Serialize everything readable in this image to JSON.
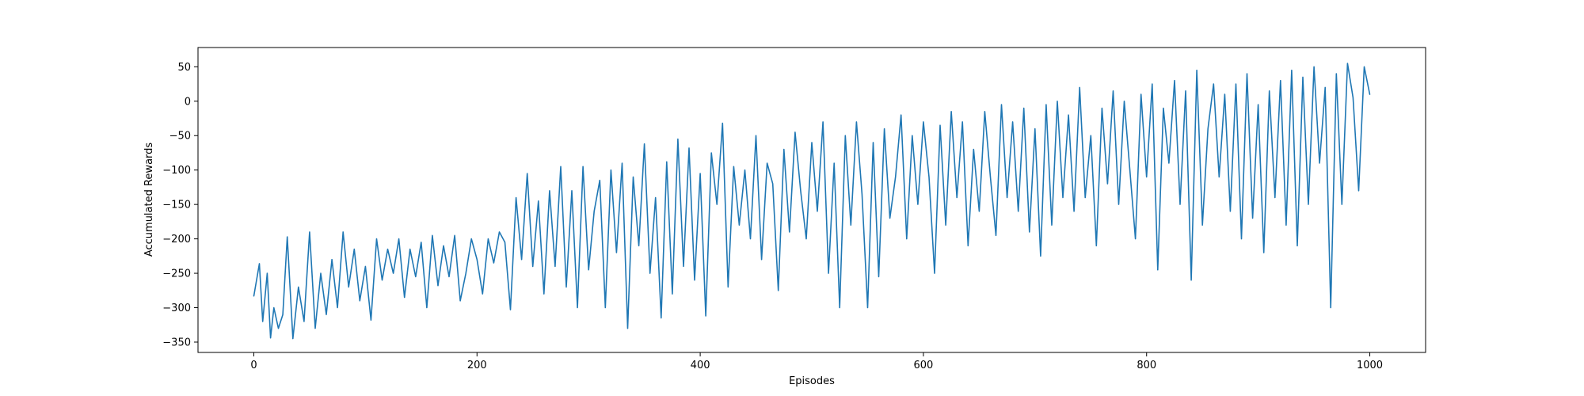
{
  "chart_data": {
    "type": "line",
    "title": "",
    "xlabel": "Episodes",
    "ylabel": "Accumulated Rewards",
    "xlim": [
      -50,
      1050
    ],
    "ylim": [
      -365,
      78
    ],
    "x_ticks": [
      0,
      200,
      400,
      600,
      800,
      1000
    ],
    "x_tick_labels": [
      "0",
      "200",
      "400",
      "600",
      "800",
      "1000"
    ],
    "y_ticks": [
      50,
      0,
      -50,
      -100,
      -150,
      -200,
      -250,
      -300,
      -350
    ],
    "y_tick_labels": [
      "50",
      "0",
      "−50",
      "−100",
      "−150",
      "−200",
      "−250",
      "−300",
      "−350"
    ],
    "grid": false,
    "legend": "none",
    "line_color": "#1f77b4",
    "series": [
      {
        "x": [
          0,
          5,
          8,
          12,
          15,
          18,
          22,
          26,
          30,
          35,
          40,
          45,
          50,
          55,
          60,
          65,
          70,
          75,
          80,
          85,
          90,
          95,
          100,
          105,
          110,
          115,
          120,
          125,
          130,
          135,
          140,
          145,
          150,
          155,
          160,
          165,
          170,
          175,
          180,
          185,
          190,
          195,
          200,
          205,
          210,
          215,
          220,
          225,
          230,
          235,
          240,
          245,
          250,
          255,
          260,
          265,
          270,
          275,
          280,
          285,
          290,
          295,
          300,
          305,
          310,
          315,
          320,
          325,
          330,
          335,
          340,
          345,
          350,
          355,
          360,
          365,
          370,
          375,
          380,
          385,
          390,
          395,
          400,
          405,
          410,
          415,
          420,
          425,
          430,
          435,
          440,
          445,
          450,
          455,
          460,
          465,
          470,
          475,
          480,
          485,
          490,
          495,
          500,
          505,
          510,
          515,
          520,
          525,
          530,
          535,
          540,
          545,
          550,
          555,
          560,
          565,
          570,
          575,
          580,
          585,
          590,
          595,
          600,
          605,
          610,
          615,
          620,
          625,
          630,
          635,
          640,
          645,
          650,
          655,
          660,
          665,
          670,
          675,
          680,
          685,
          690,
          695,
          700,
          705,
          710,
          715,
          720,
          725,
          730,
          735,
          740,
          745,
          750,
          755,
          760,
          765,
          770,
          775,
          780,
          785,
          790,
          795,
          800,
          805,
          810,
          815,
          820,
          825,
          830,
          835,
          840,
          845,
          850,
          855,
          860,
          865,
          870,
          875,
          880,
          885,
          890,
          895,
          900,
          905,
          910,
          915,
          920,
          925,
          930,
          935,
          940,
          945,
          950,
          955,
          960,
          965,
          970,
          975,
          980,
          985,
          990,
          995,
          1000
        ],
        "values": [
          -283,
          -236,
          -320,
          -250,
          -344,
          -300,
          -330,
          -310,
          -197,
          -345,
          -270,
          -320,
          -190,
          -330,
          -250,
          -310,
          -230,
          -300,
          -190,
          -270,
          -215,
          -290,
          -240,
          -318,
          -200,
          -260,
          -215,
          -250,
          -200,
          -285,
          -215,
          -255,
          -205,
          -300,
          -195,
          -268,
          -210,
          -255,
          -195,
          -290,
          -250,
          -200,
          -230,
          -280,
          -200,
          -235,
          -190,
          -205,
          -303,
          -140,
          -230,
          -105,
          -240,
          -145,
          -280,
          -130,
          -240,
          -95,
          -270,
          -130,
          -300,
          -95,
          -245,
          -160,
          -115,
          -300,
          -100,
          -220,
          -90,
          -330,
          -110,
          -210,
          -62,
          -250,
          -140,
          -315,
          -88,
          -280,
          -55,
          -240,
          -68,
          -260,
          -105,
          -312,
          -75,
          -150,
          -32,
          -270,
          -95,
          -180,
          -100,
          -200,
          -50,
          -230,
          -90,
          -120,
          -275,
          -70,
          -190,
          -45,
          -130,
          -200,
          -60,
          -160,
          -30,
          -250,
          -90,
          -300,
          -50,
          -180,
          -30,
          -135,
          -300,
          -60,
          -255,
          -40,
          -170,
          -110,
          -20,
          -200,
          -50,
          -150,
          -30,
          -110,
          -250,
          -35,
          -180,
          -15,
          -140,
          -30,
          -210,
          -70,
          -160,
          -15,
          -110,
          -195,
          -5,
          -140,
          -30,
          -160,
          -10,
          -190,
          -40,
          -225,
          -5,
          -180,
          0,
          -140,
          -20,
          -160,
          20,
          -140,
          -50,
          -210,
          -10,
          -120,
          15,
          -150,
          0,
          -100,
          -200,
          10,
          -110,
          25,
          -245,
          -10,
          -90,
          30,
          -150,
          15,
          -260,
          45,
          -180,
          -40,
          25,
          -110,
          10,
          -160,
          25,
          -200,
          40,
          -170,
          -5,
          -220,
          15,
          -140,
          30,
          -180,
          45,
          -210,
          35,
          -150,
          50,
          -90,
          20,
          -300,
          40,
          -150,
          55,
          5,
          -130,
          50,
          10
        ]
      }
    ]
  }
}
